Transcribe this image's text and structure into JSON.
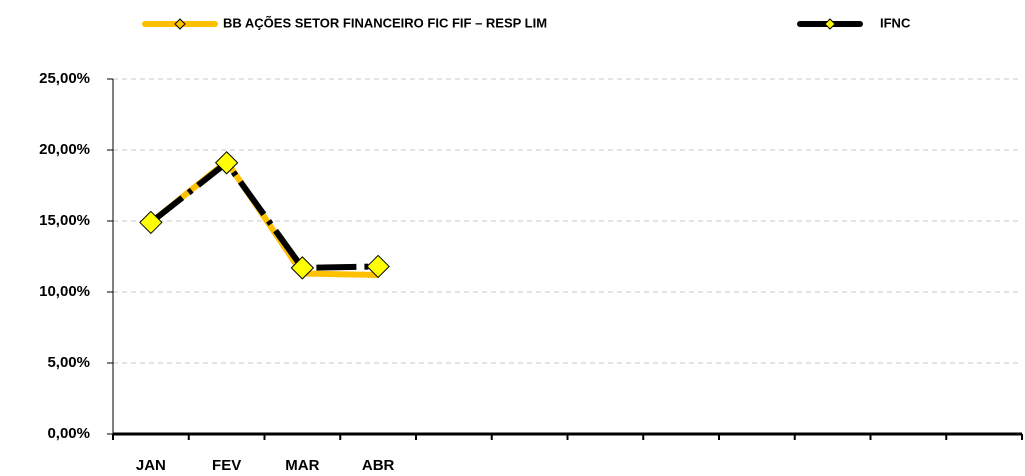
{
  "chart_data": {
    "type": "line",
    "categories": [
      "JAN",
      "FEV",
      "MAR",
      "ABR",
      null,
      null,
      null,
      null,
      null,
      null,
      null,
      null
    ],
    "series": [
      {
        "name": "BB AÇÕES SETOR FINANCEIRO FIC FIF – RESP LIM",
        "color": "#ffc000",
        "values": [
          14.9,
          19.2,
          11.3,
          11.2,
          null,
          null,
          null,
          null,
          null,
          null,
          null,
          null
        ]
      },
      {
        "name": "IFNC",
        "color": "#000000",
        "marker_color": "#ffff00",
        "values": [
          14.9,
          19.1,
          11.7,
          11.8,
          null,
          null,
          null,
          null,
          null,
          null,
          null,
          null
        ]
      }
    ],
    "ylim": [
      0,
      25
    ],
    "yticks": [
      {
        "value": 0,
        "label": "0,00%"
      },
      {
        "value": 5,
        "label": "5,00%"
      },
      {
        "value": 10,
        "label": "10,00%"
      },
      {
        "value": 15,
        "label": "15,00%"
      },
      {
        "value": 20,
        "label": "20,00%"
      },
      {
        "value": 25,
        "label": "25,00%"
      }
    ],
    "grid": true,
    "legend": "top"
  }
}
